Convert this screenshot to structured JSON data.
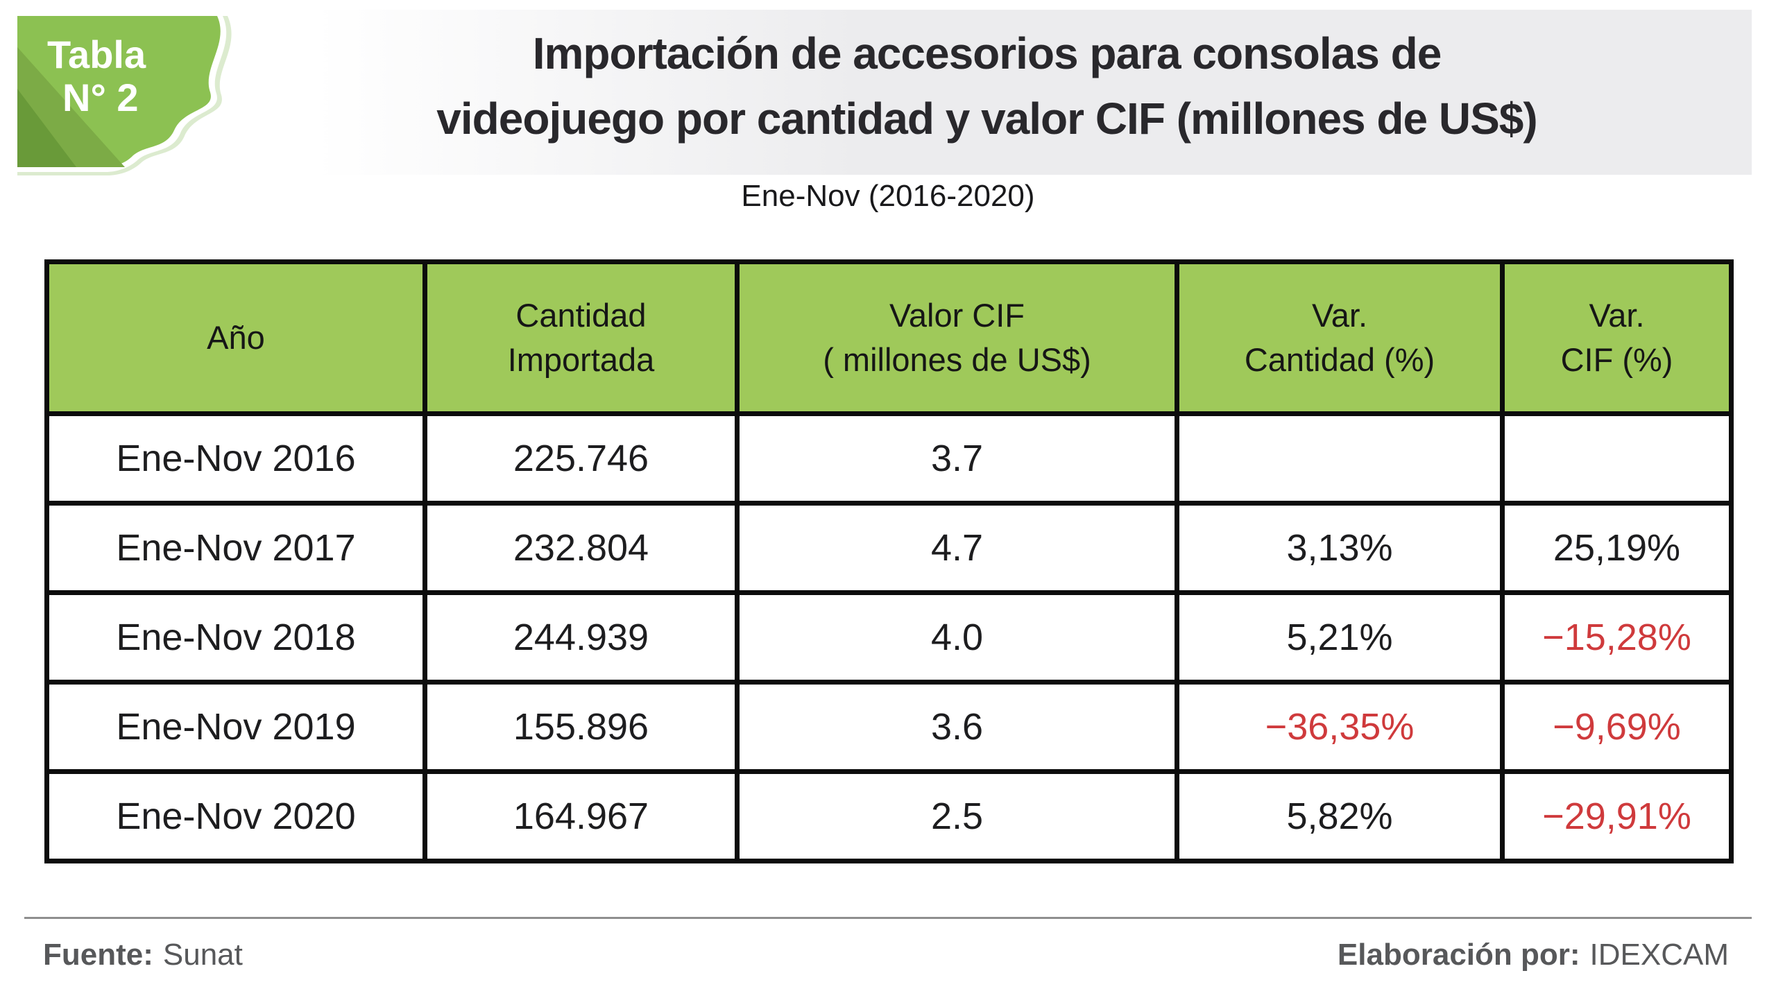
{
  "badge": {
    "line1": "Tabla",
    "line2": "N° 2"
  },
  "title": {
    "line1": "Importación de accesorios para consolas de",
    "line2": "videojuego por cantidad y valor CIF (millones de US$)",
    "subtitle": "Ene-Nov (2016-2020)"
  },
  "table": {
    "columns": [
      "Año",
      "Cantidad\nImportada",
      "Valor CIF\n( millones de US$)",
      "Var.\nCantidad (%)",
      "Var.\nCIF (%)"
    ],
    "rows": [
      [
        "Ene-Nov 2016",
        "225.746",
        "3.7",
        "",
        ""
      ],
      [
        "Ene-Nov 2017",
        "232.804",
        "4.7",
        "3,13%",
        "25,19%"
      ],
      [
        "Ene-Nov 2018",
        "244.939",
        "4.0",
        "5,21%",
        "−15,28%"
      ],
      [
        "Ene-Nov 2019",
        "155.896",
        "3.6",
        "−36,35%",
        "−9,69%"
      ],
      [
        "Ene-Nov 2020",
        "164.967",
        "2.5",
        "5,82%",
        "−29,91%"
      ]
    ]
  },
  "footer": {
    "source_label": "Fuente:",
    "source_value": "Sunat",
    "elaboration_label": "Elaboración por:",
    "elaboration_value": "IDEXCAM"
  },
  "colors": {
    "header_green": "#9fc95a",
    "badge_green": "#8cc152",
    "badge_wedge_medium": "#7cab46",
    "badge_wedge_dark": "#699a39",
    "negative_red": "#cf3a3c",
    "border_black": "#0c0c0c",
    "band_gray": "#ececee",
    "footer_gray": "#57585a"
  },
  "chart_data": {
    "type": "table",
    "title": "Importación de accesorios para consolas de videojuego por cantidad y valor CIF (millones de US$)",
    "subtitle": "Ene-Nov (2016-2020)",
    "columns": [
      "Año",
      "Cantidad Importada",
      "Valor CIF ( millones de US$)",
      "Var. Cantidad (%)",
      "Var. CIF (%)"
    ],
    "rows": [
      [
        "Ene-Nov 2016",
        "225.746",
        "3.7",
        "",
        ""
      ],
      [
        "Ene-Nov 2017",
        "232.804",
        "4.7",
        "3,13%",
        "25,19%"
      ],
      [
        "Ene-Nov 2018",
        "244.939",
        "4.0",
        "5,21%",
        "-15,28%"
      ],
      [
        "Ene-Nov 2019",
        "155.896",
        "3.6",
        "-36,35%",
        "-9,69%"
      ],
      [
        "Ene-Nov 2020",
        "164.967",
        "2.5",
        "5,82%",
        "-29,91%"
      ]
    ],
    "notes": "Negative variation values rendered in red; source Sunat; elaborated by IDEXCAM"
  }
}
